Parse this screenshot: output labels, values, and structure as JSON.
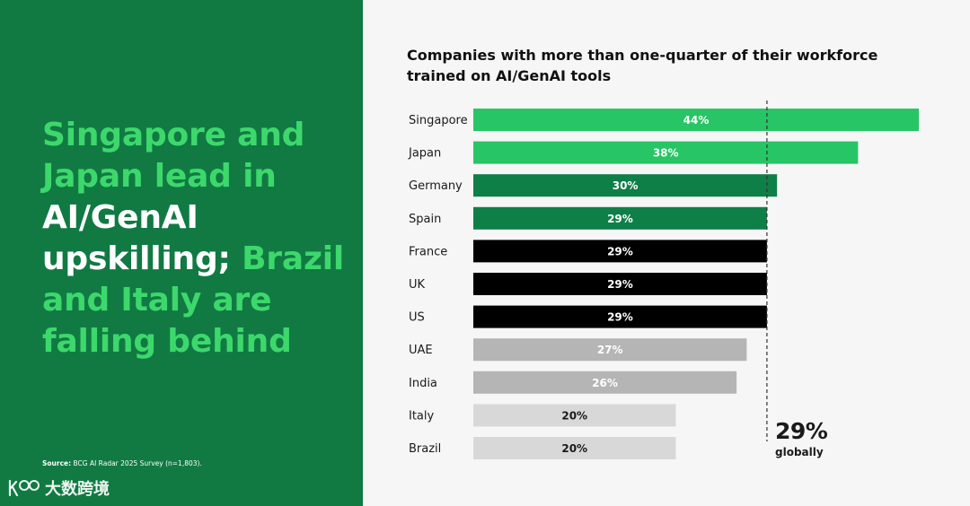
{
  "headline": {
    "segments": [
      {
        "text": "Singapore and Japan lead in ",
        "style": "green"
      },
      {
        "text": "AI/GenAI upskilling; ",
        "style": "white"
      },
      {
        "text": "Brazil and Italy are falling behind",
        "style": "green"
      }
    ]
  },
  "source": {
    "label": "Source:",
    "text": " BCG AI Radar 2025 Survey (n=1,803)."
  },
  "watermark": {
    "text": "大数跨境",
    "logo_icon": "kuajing-logo-icon"
  },
  "colors": {
    "panel": "#117a43",
    "bright_green": "#27c565",
    "dark_green": "#0f7f48",
    "black": "#000000",
    "mid_gray": "#b5b5b5",
    "light_gray": "#d8d8d8",
    "headline_green": "#3dd86c"
  },
  "chart_data": {
    "type": "bar",
    "orientation": "horizontal",
    "title": "Companies with more than one-quarter of their workforce trained on AI/GenAI tools",
    "categories": [
      "Singapore",
      "Japan",
      "Germany",
      "Spain",
      "France",
      "UK",
      "US",
      "UAE",
      "India",
      "Italy",
      "Brazil"
    ],
    "values": [
      44,
      38,
      30,
      29,
      29,
      29,
      29,
      27,
      26,
      20,
      20
    ],
    "value_labels": [
      "44%",
      "38%",
      "30%",
      "29%",
      "29%",
      "29%",
      "29%",
      "27%",
      "26%",
      "20%",
      "20%"
    ],
    "bar_colors": [
      "#27c565",
      "#27c565",
      "#0f7f48",
      "#0f7f48",
      "#000000",
      "#000000",
      "#000000",
      "#b5b5b5",
      "#b5b5b5",
      "#d8d8d8",
      "#d8d8d8"
    ],
    "label_colors": [
      "#ffffff",
      "#ffffff",
      "#ffffff",
      "#ffffff",
      "#ffffff",
      "#ffffff",
      "#ffffff",
      "#ffffff",
      "#ffffff",
      "#1a1a1a",
      "#1a1a1a"
    ],
    "reference_line": {
      "value": 29,
      "style": "dashed",
      "label_value": "29%",
      "label_text": "globally"
    },
    "xlim": [
      0,
      44
    ],
    "grid": false,
    "legend": "none"
  }
}
